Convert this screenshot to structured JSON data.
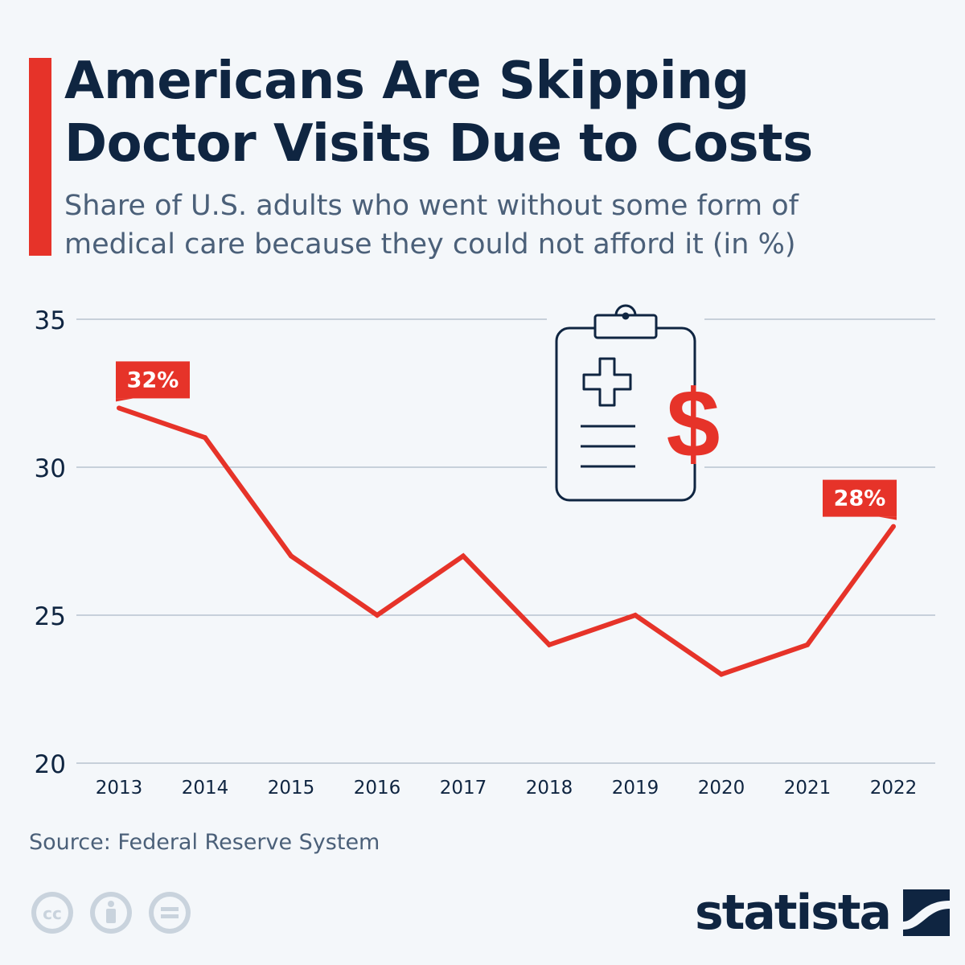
{
  "header": {
    "title_line1": "Americans Are Skipping",
    "title_line2": "Doctor Visits Due to Costs",
    "subtitle_line1": "Share of U.S. adults who went without some form of",
    "subtitle_line2": "medical care because they could not afford it (in %)"
  },
  "chart_data": {
    "type": "line",
    "title": "Americans Are Skipping Doctor Visits Due to Costs",
    "subtitle": "Share of U.S. adults who went without some form of medical care because they could not afford it (in %)",
    "xlabel": "",
    "ylabel": "",
    "x": [
      "2013",
      "2014",
      "2015",
      "2016",
      "2017",
      "2018",
      "2019",
      "2020",
      "2021",
      "2022"
    ],
    "values": [
      32,
      31,
      27,
      25,
      27,
      24,
      25,
      23,
      24,
      28
    ],
    "ylim": [
      20,
      35
    ],
    "yticks": [
      20,
      25,
      30,
      35
    ],
    "grid": true,
    "legend": "none",
    "annotations": [
      {
        "x": "2013",
        "text": "32%"
      },
      {
        "x": "2022",
        "text": "28%"
      }
    ]
  },
  "footer": {
    "source": "Source: Federal Reserve System",
    "brand": "statista"
  },
  "icons": {
    "illustration": "clipboard-dollar-icon",
    "license": [
      "cc-icon",
      "attribution-icon",
      "no-derivatives-icon"
    ],
    "brand_logo": "statista-logo-icon"
  },
  "colors": {
    "accent": "#e63329",
    "line": "#e63329",
    "title": "#0f2541",
    "text": "#4b6079",
    "grid": "#9aa9bb",
    "background": "#f4f7fa",
    "icon_gray": "#c9d3dd"
  }
}
